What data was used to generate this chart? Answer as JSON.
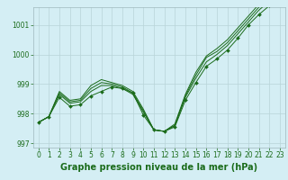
{
  "x": [
    0,
    1,
    2,
    3,
    4,
    5,
    6,
    7,
    8,
    9,
    10,
    11,
    12,
    13,
    14,
    15,
    16,
    17,
    18,
    19,
    20,
    21,
    22,
    23
  ],
  "series": [
    [
      997.7,
      997.9,
      998.55,
      998.25,
      998.3,
      998.6,
      998.75,
      998.9,
      998.85,
      998.7,
      997.95,
      997.45,
      997.4,
      997.55,
      998.45,
      999.05,
      999.6,
      999.85,
      1000.15,
      1000.55,
      1001.0,
      1001.35,
      1001.65,
      1001.8
    ],
    [
      997.7,
      997.9,
      998.65,
      998.35,
      998.4,
      998.75,
      998.95,
      998.95,
      998.85,
      998.65,
      998.05,
      997.45,
      997.4,
      997.6,
      998.55,
      999.2,
      999.75,
      1000.0,
      1000.3,
      1000.7,
      1001.1,
      1001.5,
      1001.8,
      1001.8
    ],
    [
      997.7,
      997.9,
      998.7,
      998.4,
      998.45,
      998.85,
      999.05,
      999.0,
      998.9,
      998.7,
      998.1,
      997.45,
      997.4,
      997.6,
      998.6,
      999.3,
      999.9,
      1000.1,
      1000.4,
      1000.8,
      1001.2,
      1001.6,
      1001.9,
      1001.8
    ],
    [
      997.7,
      997.9,
      998.75,
      998.45,
      998.5,
      998.95,
      999.15,
      999.05,
      998.95,
      998.75,
      998.15,
      997.45,
      997.4,
      997.65,
      998.65,
      999.4,
      999.95,
      1000.2,
      1000.5,
      1000.9,
      1001.3,
      1001.7,
      1002.0,
      1001.8
    ]
  ],
  "marker_series": 0,
  "ylim": [
    996.85,
    1001.6
  ],
  "xlim": [
    -0.5,
    23.5
  ],
  "yticks": [
    997,
    998,
    999,
    1000,
    1001
  ],
  "xticks": [
    0,
    1,
    2,
    3,
    4,
    5,
    6,
    7,
    8,
    9,
    10,
    11,
    12,
    13,
    14,
    15,
    16,
    17,
    18,
    19,
    20,
    21,
    22,
    23
  ],
  "line_color": "#1a6b1a",
  "bg_color": "#d4eef4",
  "grid_color": "#b8d4d8",
  "xlabel": "Graphe pression niveau de la mer (hPa)",
  "xlabel_fontsize": 7,
  "tick_fontsize": 5.5,
  "linewidth": 0.7,
  "markersize": 2.0
}
